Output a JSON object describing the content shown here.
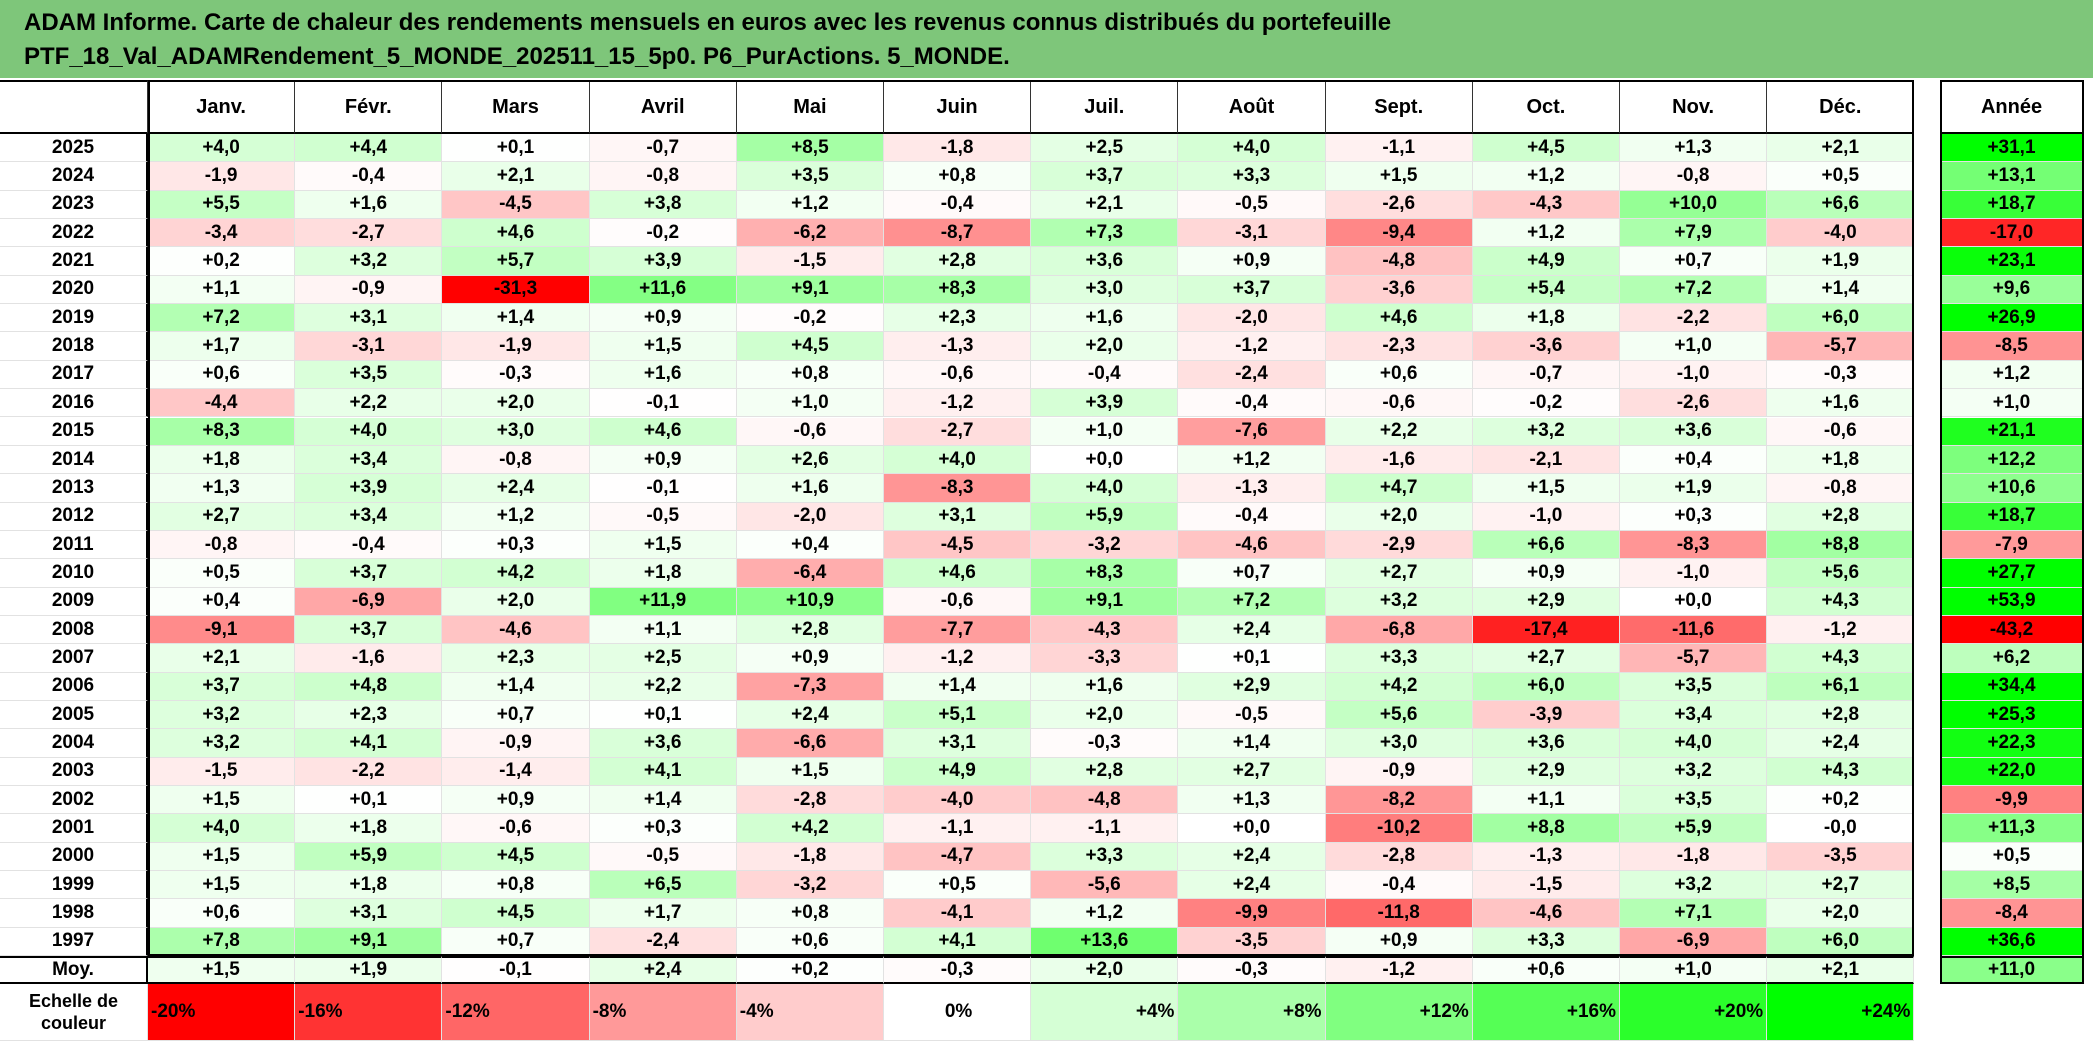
{
  "title": {
    "line1": "ADAM Informe. Carte de chaleur des rendements mensuels en euros avec les revenus connus distribués du portefeuille",
    "line2": "PTF_18_Val_ADAMRendement_5_MONDE_202511_15_5p0. P6_PurActions. 5_MONDE."
  },
  "chart_data": {
    "type": "heatmap",
    "months": [
      "Janv.",
      "Févr.",
      "Mars",
      "Avril",
      "Mai",
      "Juin",
      "Juil.",
      "Août",
      "Sept.",
      "Oct.",
      "Nov.",
      "Déc."
    ],
    "year_header": "Année",
    "years": [
      "2025",
      "2024",
      "2023",
      "2022",
      "2021",
      "2020",
      "2019",
      "2018",
      "2017",
      "2016",
      "2015",
      "2014",
      "2013",
      "2012",
      "2011",
      "2010",
      "2009",
      "2008",
      "2007",
      "2006",
      "2005",
      "2004",
      "2003",
      "2002",
      "2001",
      "2000",
      "1999",
      "1998",
      "1997"
    ],
    "monthly": [
      [
        "+4,0",
        "+4,4",
        "+0,1",
        "-0,7",
        "+8,5",
        "-1,8",
        "+2,5",
        "+4,0",
        "-1,1",
        "+4,5",
        "+1,3",
        "+2,1"
      ],
      [
        "-1,9",
        "-0,4",
        "+2,1",
        "-0,8",
        "+3,5",
        "+0,8",
        "+3,7",
        "+3,3",
        "+1,5",
        "+1,2",
        "-0,8",
        "+0,5"
      ],
      [
        "+5,5",
        "+1,6",
        "-4,5",
        "+3,8",
        "+1,2",
        "-0,4",
        "+2,1",
        "-0,5",
        "-2,6",
        "-4,3",
        "+10,0",
        "+6,6"
      ],
      [
        "-3,4",
        "-2,7",
        "+4,6",
        "-0,2",
        "-6,2",
        "-8,7",
        "+7,3",
        "-3,1",
        "-9,4",
        "+1,2",
        "+7,9",
        "-4,0"
      ],
      [
        "+0,2",
        "+3,2",
        "+5,7",
        "+3,9",
        "-1,5",
        "+2,8",
        "+3,6",
        "+0,9",
        "-4,8",
        "+4,9",
        "+0,7",
        "+1,9"
      ],
      [
        "+1,1",
        "-0,9",
        "-31,3",
        "+11,6",
        "+9,1",
        "+8,3",
        "+3,0",
        "+3,7",
        "-3,6",
        "+5,4",
        "+7,2",
        "+1,4"
      ],
      [
        "+7,2",
        "+3,1",
        "+1,4",
        "+0,9",
        "-0,2",
        "+2,3",
        "+1,6",
        "-2,0",
        "+4,6",
        "+1,8",
        "-2,2",
        "+6,0"
      ],
      [
        "+1,7",
        "-3,1",
        "-1,9",
        "+1,5",
        "+4,5",
        "-1,3",
        "+2,0",
        "-1,2",
        "-2,3",
        "-3,6",
        "+1,0",
        "-5,7"
      ],
      [
        "+0,6",
        "+3,5",
        "-0,3",
        "+1,6",
        "+0,8",
        "-0,6",
        "-0,4",
        "-2,4",
        "+0,6",
        "-0,7",
        "-1,0",
        "-0,3"
      ],
      [
        "-4,4",
        "+2,2",
        "+2,0",
        "-0,1",
        "+1,0",
        "-1,2",
        "+3,9",
        "-0,4",
        "-0,6",
        "-0,2",
        "-2,6",
        "+1,6"
      ],
      [
        "+8,3",
        "+4,0",
        "+3,0",
        "+4,6",
        "-0,6",
        "-2,7",
        "+1,0",
        "-7,6",
        "+2,2",
        "+3,2",
        "+3,6",
        "-0,6"
      ],
      [
        "+1,8",
        "+3,4",
        "-0,8",
        "+0,9",
        "+2,6",
        "+4,0",
        "+0,0",
        "+1,2",
        "-1,6",
        "-2,1",
        "+0,4",
        "+1,8"
      ],
      [
        "+1,3",
        "+3,9",
        "+2,4",
        "-0,1",
        "+1,6",
        "-8,3",
        "+4,0",
        "-1,3",
        "+4,7",
        "+1,5",
        "+1,9",
        "-0,8"
      ],
      [
        "+2,7",
        "+3,4",
        "+1,2",
        "-0,5",
        "-2,0",
        "+3,1",
        "+5,9",
        "-0,4",
        "+2,0",
        "-1,0",
        "+0,3",
        "+2,8"
      ],
      [
        "-0,8",
        "-0,4",
        "+0,3",
        "+1,5",
        "+0,4",
        "-4,5",
        "-3,2",
        "-4,6",
        "-2,9",
        "+6,6",
        "-8,3",
        "+8,8"
      ],
      [
        "+0,5",
        "+3,7",
        "+4,2",
        "+1,8",
        "-6,4",
        "+4,6",
        "+8,3",
        "+0,7",
        "+2,7",
        "+0,9",
        "-1,0",
        "+5,6"
      ],
      [
        "+0,4",
        "-6,9",
        "+2,0",
        "+11,9",
        "+10,9",
        "-0,6",
        "+9,1",
        "+7,2",
        "+3,2",
        "+2,9",
        "+0,0",
        "+4,3"
      ],
      [
        "-9,1",
        "+3,7",
        "-4,6",
        "+1,1",
        "+2,8",
        "-7,7",
        "-4,3",
        "+2,4",
        "-6,8",
        "-17,4",
        "-11,6",
        "-1,2"
      ],
      [
        "+2,1",
        "-1,6",
        "+2,3",
        "+2,5",
        "+0,9",
        "-1,2",
        "-3,3",
        "+0,1",
        "+3,3",
        "+2,7",
        "-5,7",
        "+4,3"
      ],
      [
        "+3,7",
        "+4,8",
        "+1,4",
        "+2,2",
        "-7,3",
        "+1,4",
        "+1,6",
        "+2,9",
        "+4,2",
        "+6,0",
        "+3,5",
        "+6,1"
      ],
      [
        "+3,2",
        "+2,3",
        "+0,7",
        "+0,1",
        "+2,4",
        "+5,1",
        "+2,0",
        "-0,5",
        "+5,6",
        "-3,9",
        "+3,4",
        "+2,8"
      ],
      [
        "+3,2",
        "+4,1",
        "-0,9",
        "+3,6",
        "-6,6",
        "+3,1",
        "-0,3",
        "+1,4",
        "+3,0",
        "+3,6",
        "+4,0",
        "+2,4"
      ],
      [
        "-1,5",
        "-2,2",
        "-1,4",
        "+4,1",
        "+1,5",
        "+4,9",
        "+2,8",
        "+2,7",
        "-0,9",
        "+2,9",
        "+3,2",
        "+4,3"
      ],
      [
        "+1,5",
        "+0,1",
        "+0,9",
        "+1,4",
        "-2,8",
        "-4,0",
        "-4,8",
        "+1,3",
        "-8,2",
        "+1,1",
        "+3,5",
        "+0,2"
      ],
      [
        "+4,0",
        "+1,8",
        "-0,6",
        "+0,3",
        "+4,2",
        "-1,1",
        "-1,1",
        "+0,0",
        "-10,2",
        "+8,8",
        "+5,9",
        "-0,0"
      ],
      [
        "+1,5",
        "+5,9",
        "+4,5",
        "-0,5",
        "-1,8",
        "-4,7",
        "+3,3",
        "+2,4",
        "-2,8",
        "-1,3",
        "-1,8",
        "-3,5"
      ],
      [
        "+1,5",
        "+1,8",
        "+0,8",
        "+6,5",
        "-3,2",
        "+0,5",
        "-5,6",
        "+2,4",
        "-0,4",
        "-1,5",
        "+3,2",
        "+2,7"
      ],
      [
        "+0,6",
        "+3,1",
        "+4,5",
        "+1,7",
        "+0,8",
        "-4,1",
        "+1,2",
        "-9,9",
        "-11,8",
        "-4,6",
        "+7,1",
        "+2,0"
      ],
      [
        "+7,8",
        "+9,1",
        "+0,7",
        "-2,4",
        "+0,6",
        "+4,1",
        "+13,6",
        "-3,5",
        "+0,9",
        "+3,3",
        "-6,9",
        "+6,0"
      ]
    ],
    "annual": [
      "+31,1",
      "+13,1",
      "+18,7",
      "-17,0",
      "+23,1",
      "+9,6",
      "+26,9",
      "-8,5",
      "+1,2",
      "+1,0",
      "+21,1",
      "+12,2",
      "+10,6",
      "+18,7",
      "-7,9",
      "+27,7",
      "+53,9",
      "-43,2",
      "+6,2",
      "+34,4",
      "+25,3",
      "+22,3",
      "+22,0",
      "-9,9",
      "+11,3",
      "+0,5",
      "+8,5",
      "-8,4",
      "+36,6"
    ],
    "average_label": "Moy.",
    "average_monthly": [
      "+1,5",
      "+1,9",
      "-0,1",
      "+2,4",
      "+0,2",
      "-0,3",
      "+2,0",
      "-0,3",
      "-1,2",
      "+0,6",
      "+1,0",
      "+2,1"
    ],
    "average_annual": "+11,0",
    "scale_label_line1": "Echelle de",
    "scale_label_line2": "couleur",
    "scale_labels": [
      "-20%",
      "-16%",
      "-12%",
      "-8%",
      "-4%",
      "0%",
      "+4%",
      "+8%",
      "+12%",
      "+16%",
      "+20%",
      "+24%"
    ],
    "scale_values": [
      -20,
      -16,
      -12,
      -8,
      -4,
      0,
      4,
      8,
      12,
      16,
      20,
      24
    ],
    "colors": {
      "negative_max": "#ff0000",
      "neutral": "#ffffff",
      "positive_max": "#00ff00",
      "title_background": "#7ec67a"
    }
  }
}
